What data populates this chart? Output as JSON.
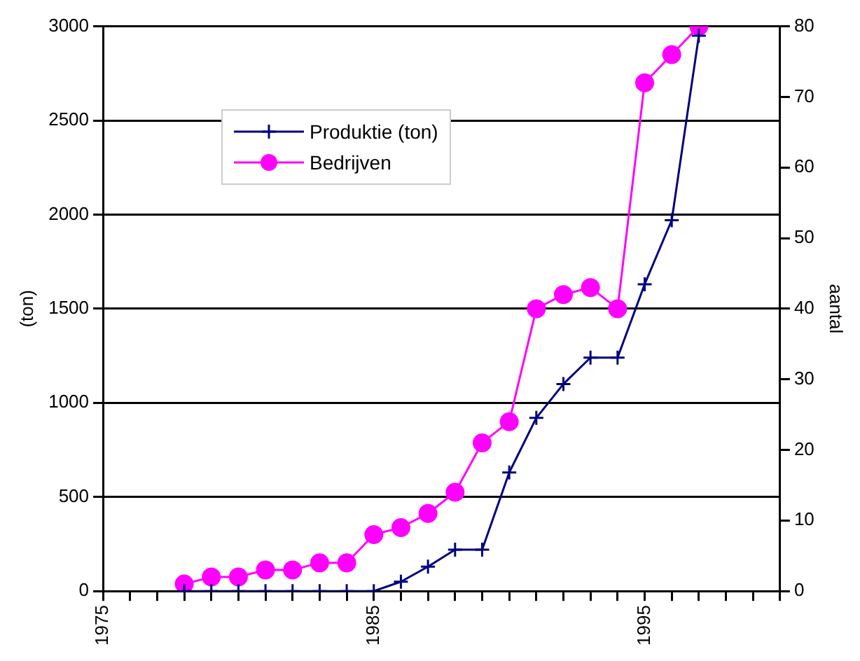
{
  "chart_data": {
    "type": "line",
    "ylabel": "(ton)",
    "y2label": "aantal",
    "x": [
      1978,
      1979,
      1980,
      1981,
      1982,
      1983,
      1984,
      1985,
      1986,
      1987,
      1988,
      1989,
      1990,
      1991,
      1992,
      1993,
      1994,
      1995,
      1996,
      1997
    ],
    "series": [
      {
        "name": "Produktie (ton)",
        "color": "#000080",
        "marker": "cross",
        "values": [
          0,
          0,
          0,
          0,
          0,
          0,
          0,
          0,
          50,
          130,
          220,
          220,
          630,
          920,
          1100,
          1240,
          1240,
          1630,
          1970,
          2950
        ]
      },
      {
        "name": "Bedrijven",
        "color": "#ff00ff",
        "marker": "circle",
        "axis": "y2",
        "values": [
          1,
          2,
          2,
          3,
          3,
          4,
          4,
          8,
          9,
          11,
          14,
          21,
          24,
          40,
          42,
          43,
          40,
          72,
          76,
          80
        ]
      }
    ],
    "xlim": [
      1975,
      2000
    ],
    "xticks": [
      1975,
      {
        "value": 1976,
        "label": null
      },
      {
        "value": 1977,
        "label": null
      },
      {
        "value": 1978,
        "label": null
      },
      {
        "value": 1979,
        "label": null
      },
      {
        "value": 1980,
        "label": null
      },
      {
        "value": 1981,
        "label": null
      },
      {
        "value": 1982,
        "label": null
      },
      {
        "value": 1983,
        "label": null
      },
      {
        "value": 1984,
        "label": null
      },
      1985,
      {
        "value": 1986,
        "label": null
      },
      {
        "value": 1987,
        "label": null
      },
      {
        "value": 1988,
        "label": null
      },
      {
        "value": 1989,
        "label": null
      },
      {
        "value": 1990,
        "label": null
      },
      {
        "value": 1991,
        "label": null
      },
      {
        "value": 1992,
        "label": null
      },
      {
        "value": 1993,
        "label": null
      },
      {
        "value": 1994,
        "label": null
      },
      1995,
      {
        "value": 1996,
        "label": null
      },
      {
        "value": 1997,
        "label": null
      },
      {
        "value": 1998,
        "label": null
      },
      {
        "value": 1999,
        "label": null
      },
      {
        "value": 2000,
        "label": null
      }
    ],
    "ylim": [
      0,
      3000
    ],
    "yticks": [
      0,
      500,
      1000,
      1500,
      2000,
      2500,
      3000
    ],
    "y2lim": [
      0,
      80
    ],
    "y2ticks": [
      0,
      10,
      20,
      30,
      40,
      50,
      60,
      70,
      80
    ],
    "grid": "y",
    "legend": "top left"
  }
}
